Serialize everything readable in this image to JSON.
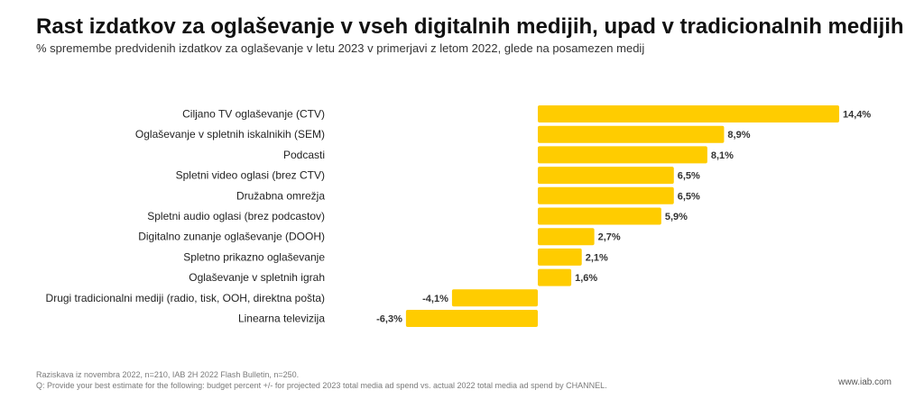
{
  "chart_data": {
    "type": "bar",
    "orientation": "horizontal",
    "title": "Rast izdatkov za oglaševanje v vseh digitalnih medijih, upad v tradicionalnih medijih",
    "subtitle": "% spremembe predvidenih izdatkov za oglaševanje v letu 2023 v primerjavi z letom 2022, glede na posamezen medij",
    "categories": [
      "Ciljano TV oglaševanje (CTV)",
      "Oglaševanje v spletnih iskalnikih (SEM)",
      "Podcasti",
      "Spletni video oglasi (brez CTV)",
      "Družabna omrežja",
      "Spletni audio oglasi (brez podcastov)",
      "Digitalno zunanje oglaševanje (DOOH)",
      "Spletno prikazno oglaševanje",
      "Oglaševanje v spletnih igrah",
      "Drugi tradicionalni mediji (radio, tisk, OOH, direktna pošta)",
      "Linearna televizija"
    ],
    "values": [
      14.4,
      8.9,
      8.1,
      6.5,
      6.5,
      5.9,
      2.7,
      2.1,
      1.6,
      -4.1,
      -6.3
    ],
    "value_labels": [
      "14,4%",
      "8,9%",
      "8,1%",
      "6,5%",
      "6,5%",
      "5,9%",
      "2,7%",
      "2,1%",
      "1,6%",
      "-4,1%",
      "-6,3%"
    ],
    "xlim": [
      -6.3,
      14.4
    ],
    "bar_color": "#ffcc00",
    "xlabel": "",
    "ylabel": "",
    "grid": false
  },
  "footer": {
    "source": "Raziskava iz novembra 2022, n=210, IAB 2H 2022 Flash Bulletin, n=250.",
    "question": "Q: Provide your best estimate for the following: budget percent +/- for projected 2023 total media ad spend vs. actual 2022 total media ad spend by CHANNEL.",
    "website": "www.iab.com"
  }
}
